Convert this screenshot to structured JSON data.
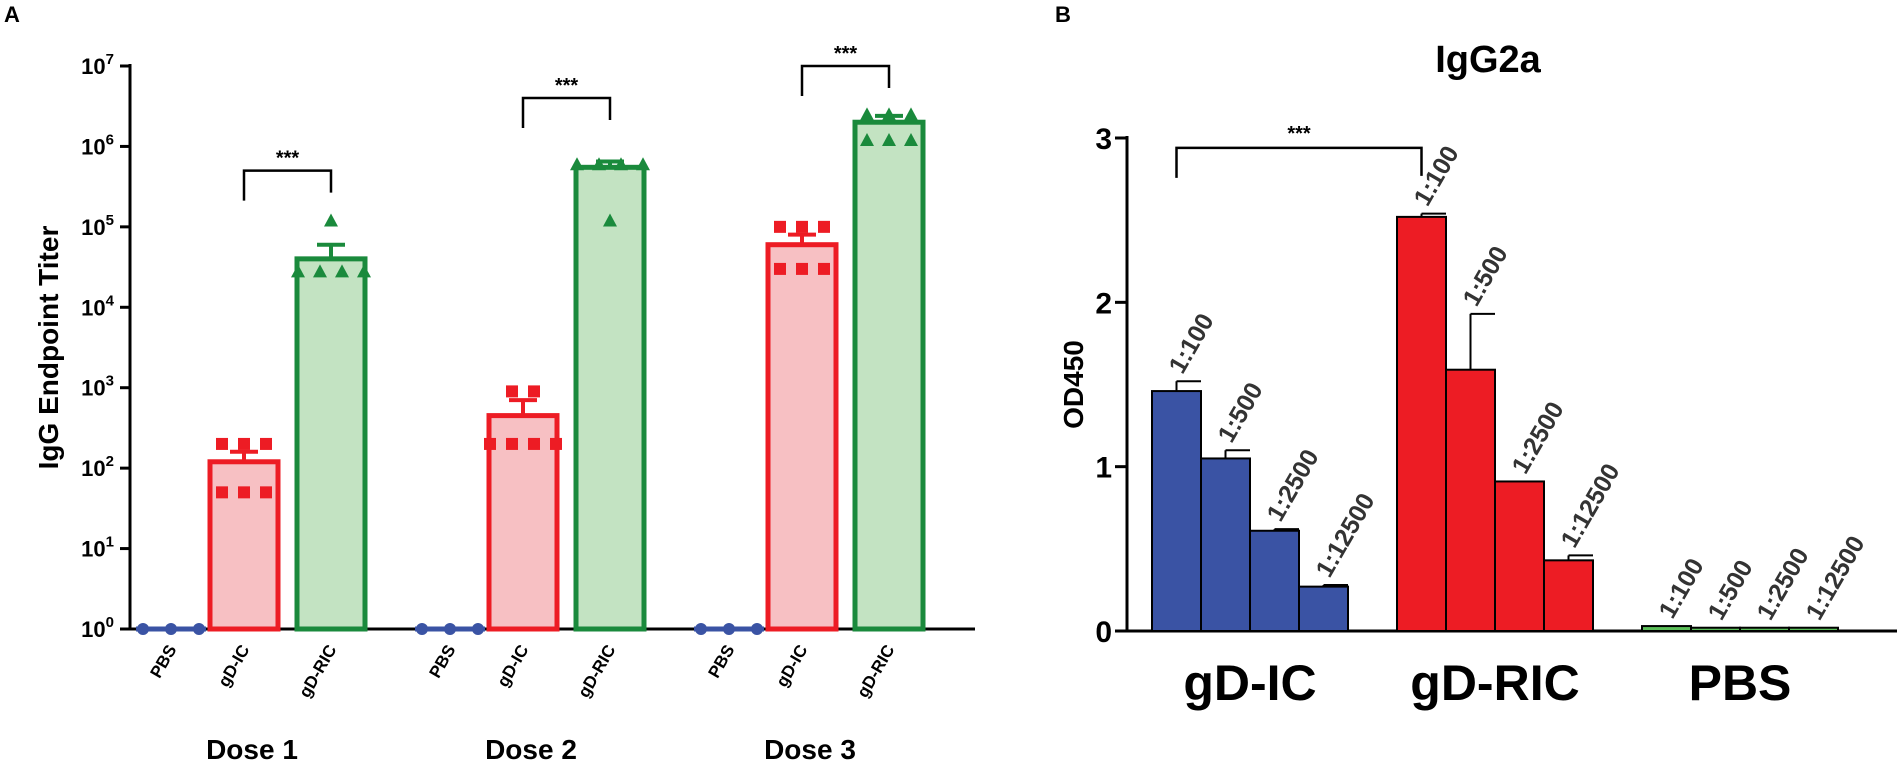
{
  "chart_data": [
    {
      "panel": "A",
      "type": "bar",
      "yscale": "log",
      "ylim": [
        1,
        10000000
      ],
      "ylabel": "IgG Endpoint Titer",
      "yticks": [
        {
          "value": 1,
          "base": "10",
          "exp": "0"
        },
        {
          "value": 10,
          "base": "10",
          "exp": "1"
        },
        {
          "value": 100,
          "base": "10",
          "exp": "2"
        },
        {
          "value": 1000,
          "base": "10",
          "exp": "3"
        },
        {
          "value": 10000,
          "base": "10",
          "exp": "4"
        },
        {
          "value": 100000,
          "base": "10",
          "exp": "5"
        },
        {
          "value": 1000000,
          "base": "10",
          "exp": "6"
        },
        {
          "value": 10000000,
          "base": "10",
          "exp": "7"
        }
      ],
      "colors": {
        "PBS": "#3a53a4",
        "gD-IC": "#ed1c24",
        "gD-RIC": "#1a8a3c",
        "gD-IC-fill": "#f7c0c3",
        "gD-RIC-fill": "#c3e3c2"
      },
      "groups": [
        {
          "label": "Dose 1",
          "bars": [
            {
              "category": "PBS",
              "mean": 1,
              "sem_top": 1,
              "points": [
                1,
                1,
                1
              ]
            },
            {
              "category": "gD-IC",
              "mean": 120,
              "sem_top": 160,
              "points": [
                200,
                200,
                200,
                50,
                50,
                50
              ]
            },
            {
              "category": "gD-RIC",
              "mean": 40000,
              "sem_top": 60000,
              "points": [
                120000,
                28000,
                28000,
                28000,
                28000
              ]
            }
          ],
          "significance": {
            "from": "gD-IC",
            "to": "gD-RIC",
            "label": "***",
            "y": 500000
          }
        },
        {
          "label": "Dose 2",
          "bars": [
            {
              "category": "PBS",
              "mean": 1,
              "sem_top": 1,
              "points": [
                1,
                1,
                1
              ]
            },
            {
              "category": "gD-IC",
              "mean": 450,
              "sem_top": 700,
              "points": [
                900,
                900,
                200,
                200,
                200,
                200
              ]
            },
            {
              "category": "gD-RIC",
              "mean": 550000,
              "sem_top": 650000,
              "points": [
                600000,
                600000,
                600000,
                600000,
                120000
              ]
            }
          ],
          "significance": {
            "from": "gD-IC",
            "to": "gD-RIC",
            "label": "***",
            "y": 4000000
          }
        },
        {
          "label": "Dose 3",
          "bars": [
            {
              "category": "PBS",
              "mean": 1,
              "sem_top": 1,
              "points": [
                1,
                1,
                1
              ]
            },
            {
              "category": "gD-IC",
              "mean": 60000,
              "sem_top": 80000,
              "points": [
                100000,
                100000,
                100000,
                30000,
                30000,
                30000
              ]
            },
            {
              "category": "gD-RIC",
              "mean": 2000000,
              "sem_top": 2400000,
              "points": [
                2500000,
                2500000,
                2500000,
                1200000,
                1200000,
                1200000
              ]
            }
          ],
          "significance": {
            "from": "gD-IC",
            "to": "gD-RIC",
            "label": "***",
            "y": 10000000
          }
        }
      ]
    },
    {
      "panel": "B",
      "type": "bar",
      "title": "IgG2a",
      "ylabel": "OD450",
      "ylim": [
        0,
        3
      ],
      "yticks": [
        "0",
        "1",
        "2",
        "3"
      ],
      "dilutions": [
        "1:100",
        "1:500",
        "1:2500",
        "1:12500"
      ],
      "groups": [
        {
          "label": "gD-IC",
          "color": "#3a53a4",
          "values": [
            1.46,
            1.05,
            0.61,
            0.27
          ],
          "errors": [
            0.06,
            0.05,
            0.01,
            0.01
          ]
        },
        {
          "label": "gD-RIC",
          "color": "#ed1c24",
          "values": [
            2.52,
            1.59,
            0.91,
            0.43
          ],
          "errors": [
            0.02,
            0.34,
            0.0,
            0.03
          ]
        },
        {
          "label": "PBS",
          "color": "#5cbf5a",
          "values": [
            0.03,
            0.02,
            0.02,
            0.02
          ],
          "errors": [
            0.0,
            0.0,
            0.0,
            0.0
          ]
        }
      ],
      "significance": {
        "from": "gD-IC",
        "to": "gD-RIC",
        "label": "***",
        "y": 2.97
      }
    }
  ],
  "panel_labels": {
    "a": "A",
    "b": "B"
  }
}
